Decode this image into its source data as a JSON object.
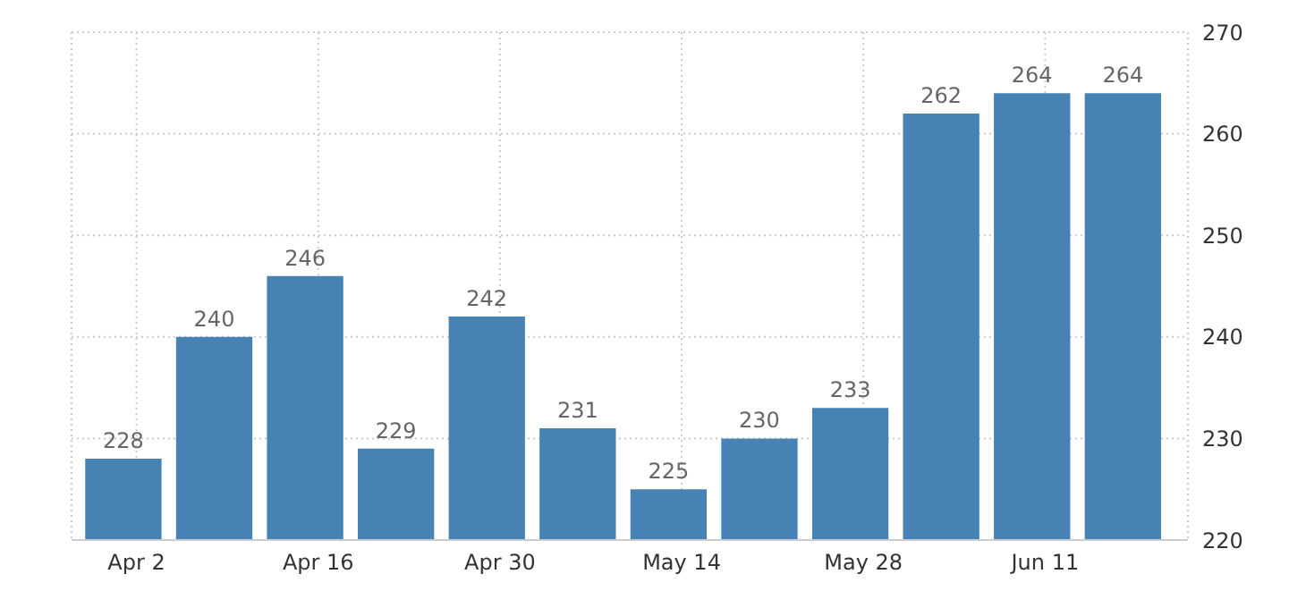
{
  "chart_data": {
    "type": "bar",
    "x": [
      "--04-01",
      "--04-08",
      "--04-15",
      "--04-22",
      "--04-29",
      "--05-06",
      "--05-13",
      "--05-20",
      "--05-27",
      "--06-03",
      "--06-10",
      "--06-17"
    ],
    "values": [
      228,
      240,
      246,
      229,
      242,
      231,
      225,
      230,
      233,
      262,
      264,
      264
    ],
    "color": "#4682b4",
    "xlim": [
      "--03-28",
      "--06-22"
    ],
    "xticks": [
      {
        "value": "--04-02",
        "label": "Apr 2"
      },
      {
        "value": "--04-16",
        "label": "Apr 16"
      },
      {
        "value": "--04-30",
        "label": "Apr 30"
      },
      {
        "value": "--05-14",
        "label": "May 14"
      },
      {
        "value": "--05-28",
        "label": "May 28"
      },
      {
        "value": "--06-11",
        "label": "Jun 11"
      }
    ],
    "ylim": [
      220,
      270
    ],
    "yticks": [
      220,
      230,
      240,
      250,
      260,
      270
    ],
    "grid": true,
    "data_labels": true
  }
}
